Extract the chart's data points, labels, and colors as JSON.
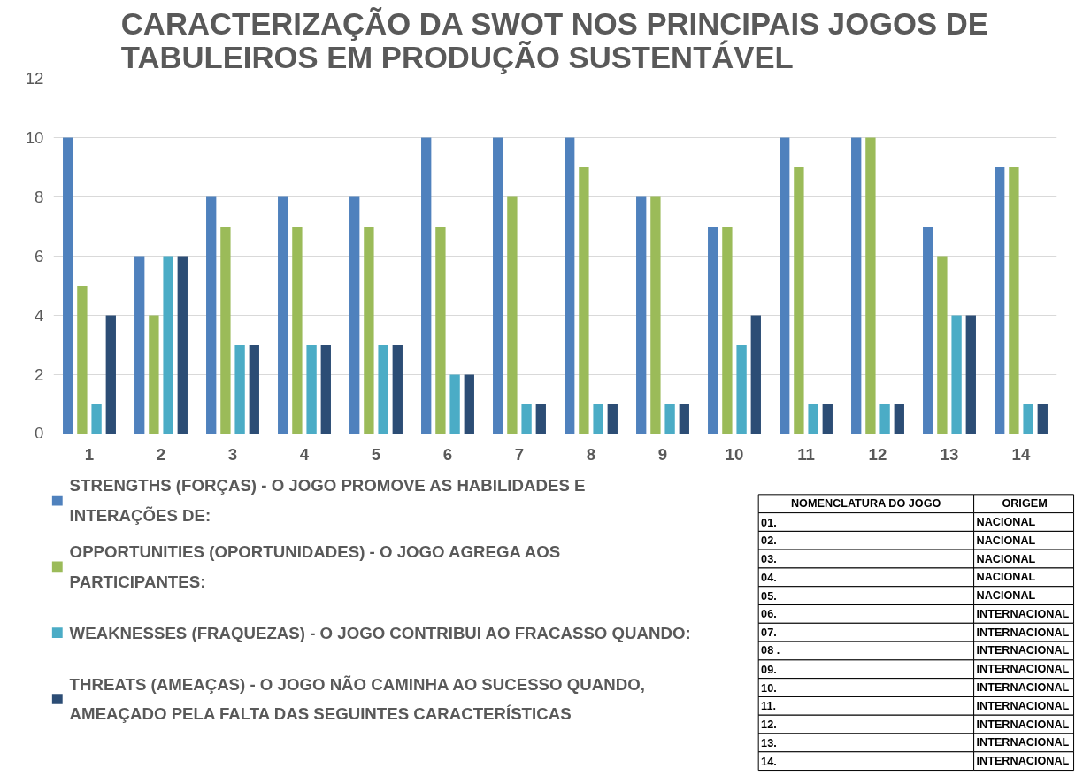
{
  "chart_data": {
    "type": "bar",
    "title": "CARACTERIZAÇÃO DA SWOT NOS PRINCIPAIS JOGOS DE TABULEIROS EM PRODUÇÃO SUSTENTÁVEL",
    "categories": [
      "1",
      "2",
      "3",
      "4",
      "5",
      "6",
      "7",
      "8",
      "9",
      "10",
      "11",
      "12",
      "13",
      "14"
    ],
    "series": [
      {
        "name": "STRENGTHS (FORÇAS) - O JOGO PROMOVE AS HABILIDADES E INTERAÇÕES DE:",
        "color": "#4f81bd",
        "values": [
          10,
          6,
          8,
          8,
          8,
          10,
          10,
          10,
          8,
          7,
          10,
          10,
          7,
          9
        ]
      },
      {
        "name": "OPPORTUNITIES (OPORTUNIDADES) - O JOGO AGREGA AOS PARTICIPANTES:",
        "color": "#9bbb59",
        "values": [
          5,
          4,
          7,
          7,
          7,
          7,
          8,
          9,
          8,
          7,
          9,
          10,
          6,
          9
        ]
      },
      {
        "name": "WEAKNESSES (FRAQUEZAS) - O JOGO CONTRIBUI AO FRACASSO QUANDO:",
        "color": "#4bacc6",
        "values": [
          1,
          6,
          3,
          3,
          3,
          2,
          1,
          1,
          1,
          3,
          1,
          1,
          4,
          1
        ]
      },
      {
        "name": "THREATS (AMEAÇAS) - O JOGO NÃO CAMINHA AO SUCESSO QUANDO, AMEAÇADO PELA FALTA DAS SEGUINTES CARACTERÍSTICAS",
        "color": "#2c4d75",
        "values": [
          4,
          6,
          3,
          3,
          3,
          2,
          1,
          1,
          1,
          4,
          1,
          1,
          4,
          1
        ]
      }
    ],
    "ylim": [
      0,
      12
    ],
    "yticks": [
      0,
      2,
      4,
      6,
      8,
      10,
      12
    ],
    "grid": "y",
    "legend": "bottom left",
    "annotations": [
      "NOMENCLATURA DO JOGO",
      "ORIGEM",
      "01.",
      "NACIONAL",
      "02.",
      "NACIONAL",
      "03.",
      "NACIONAL",
      "04.",
      "NACIONAL",
      "05.",
      "NACIONAL",
      "06.",
      "INTERNACIONAL",
      "07.",
      "INTERNACIONAL",
      "08 .",
      "INTERNACIONAL",
      "09.",
      "INTERNACIONAL",
      "10.",
      "INTERNACIONAL",
      "11.",
      "INTERNACIONAL",
      "12.",
      "INTERNACIONAL",
      "13.",
      "INTERNACIONAL",
      "14.",
      "INTERNACIONAL"
    ]
  }
}
